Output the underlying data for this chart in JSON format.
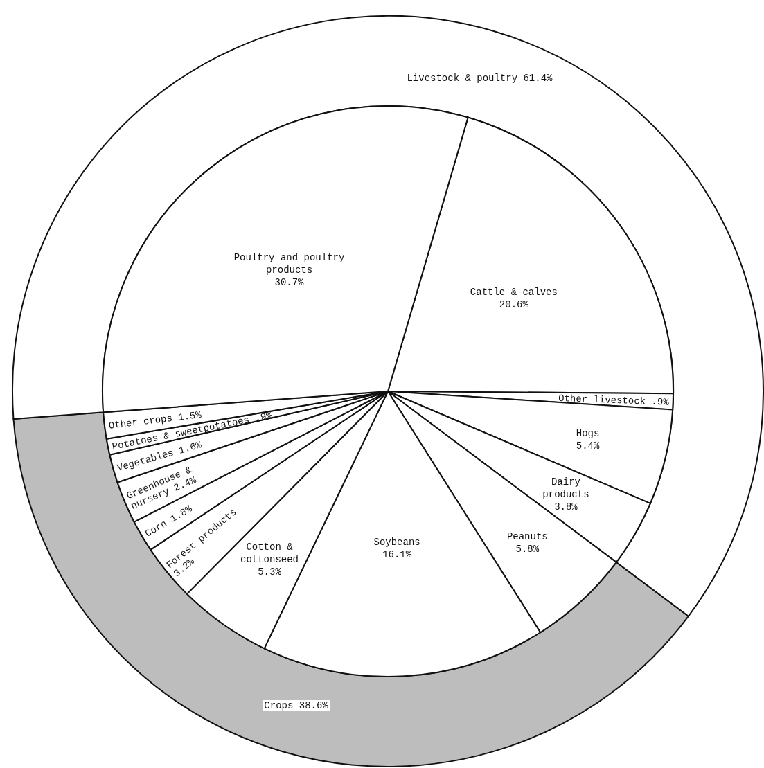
{
  "chart_data": [
    {
      "type": "pie",
      "categories": [
        "Cattle & calves",
        "Other livestock",
        "Hogs",
        "Dairy products",
        "Peanuts",
        "Soybeans",
        "Cotton & cottonseed",
        "Forest products",
        "Corn",
        "Greenhouse & nursery",
        "Vegetables",
        "Potatoes & sweetpotatoes",
        "Other crops",
        "Poultry and poultry products"
      ],
      "values": [
        20.6,
        0.9,
        5.4,
        3.8,
        5.8,
        16.1,
        5.3,
        3.2,
        1.8,
        2.4,
        1.6,
        0.9,
        1.5,
        30.7
      ],
      "value_labels": [
        "20.6%",
        ".9%",
        "5.4%",
        "3.8%",
        "5.8%",
        "16.1%",
        "5.3%",
        "3.2%",
        "1.8%",
        "2.4%",
        "1.6%",
        ".9%",
        "1.5%",
        "30.7%"
      ],
      "colors": [
        "#ffffff",
        "#ffffff",
        "#ffffff",
        "#ffffff",
        "#ffffff",
        "#ffffff",
        "#ffffff",
        "#ffffff",
        "#ffffff",
        "#ffffff",
        "#ffffff",
        "#ffffff",
        "#ffffff",
        "#ffffff"
      ]
    },
    {
      "type": "donut",
      "categories": [
        "Crops",
        "Livestock & poultry"
      ],
      "values": [
        38.6,
        61.4
      ],
      "value_labels": [
        "38.6%",
        "61.4%"
      ],
      "colors": [
        "#bdbdbd",
        "#ffffff"
      ]
    }
  ]
}
